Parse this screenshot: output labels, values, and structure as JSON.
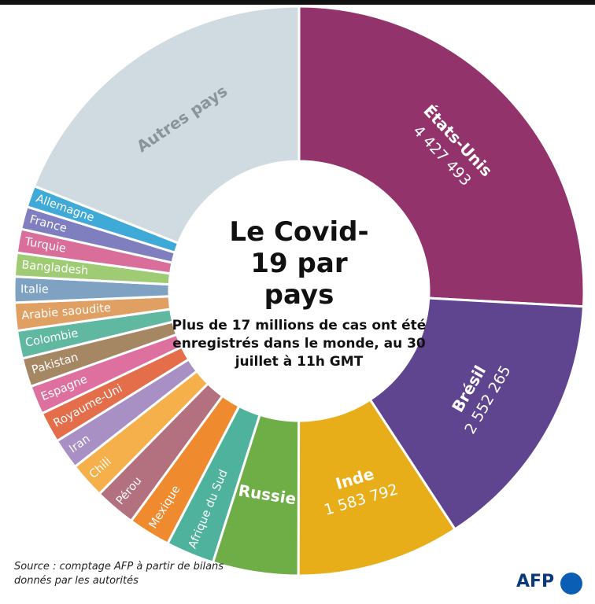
{
  "chart_data": {
    "type": "pie",
    "donut": true,
    "title": "Le Covid-19 par pays",
    "subtitle": "Plus de 17 millions de cas ont été enregistrés dans le monde, au 30 juillet à 11h GMT",
    "source": "Source : comptage AFP à partir de bilans donnés par les autorités",
    "logo": "AFP",
    "categories": [
      "États-Unis",
      "Brésil",
      "Inde",
      "Russie",
      "Afrique du Sud",
      "Mexique",
      "Pérou",
      "Chili",
      "Iran",
      "Royaume-Uni",
      "Espagne",
      "Pakistan",
      "Colombie",
      "Arabie saoudite",
      "Italie",
      "Bangladesh",
      "Turquie",
      "France",
      "Allemagne",
      "Autres pays"
    ],
    "values": [
      4427493,
      2552265,
      1583792,
      830000,
      470000,
      410000,
      400000,
      350000,
      300000,
      300000,
      280000,
      280000,
      270000,
      270000,
      250000,
      230000,
      230000,
      220000,
      210000,
      3250000
    ],
    "value_labels": [
      "4 427 493",
      "2 552 265",
      "1 583 792",
      null,
      null,
      null,
      null,
      null,
      null,
      null,
      null,
      null,
      null,
      null,
      null,
      null,
      null,
      null,
      null,
      null
    ],
    "colors": [
      "#93336b",
      "#5f4490",
      "#e8ae1a",
      "#6fad47",
      "#4fb29c",
      "#f08a2e",
      "#b3707e",
      "#f5b04b",
      "#a88fc4",
      "#e46d4a",
      "#de70a0",
      "#a68763",
      "#60b8a0",
      "#e0a063",
      "#7fa1c2",
      "#9ecb73",
      "#d96e9a",
      "#7f7fbf",
      "#3fa9d8",
      "#cfdbe0"
    ]
  }
}
